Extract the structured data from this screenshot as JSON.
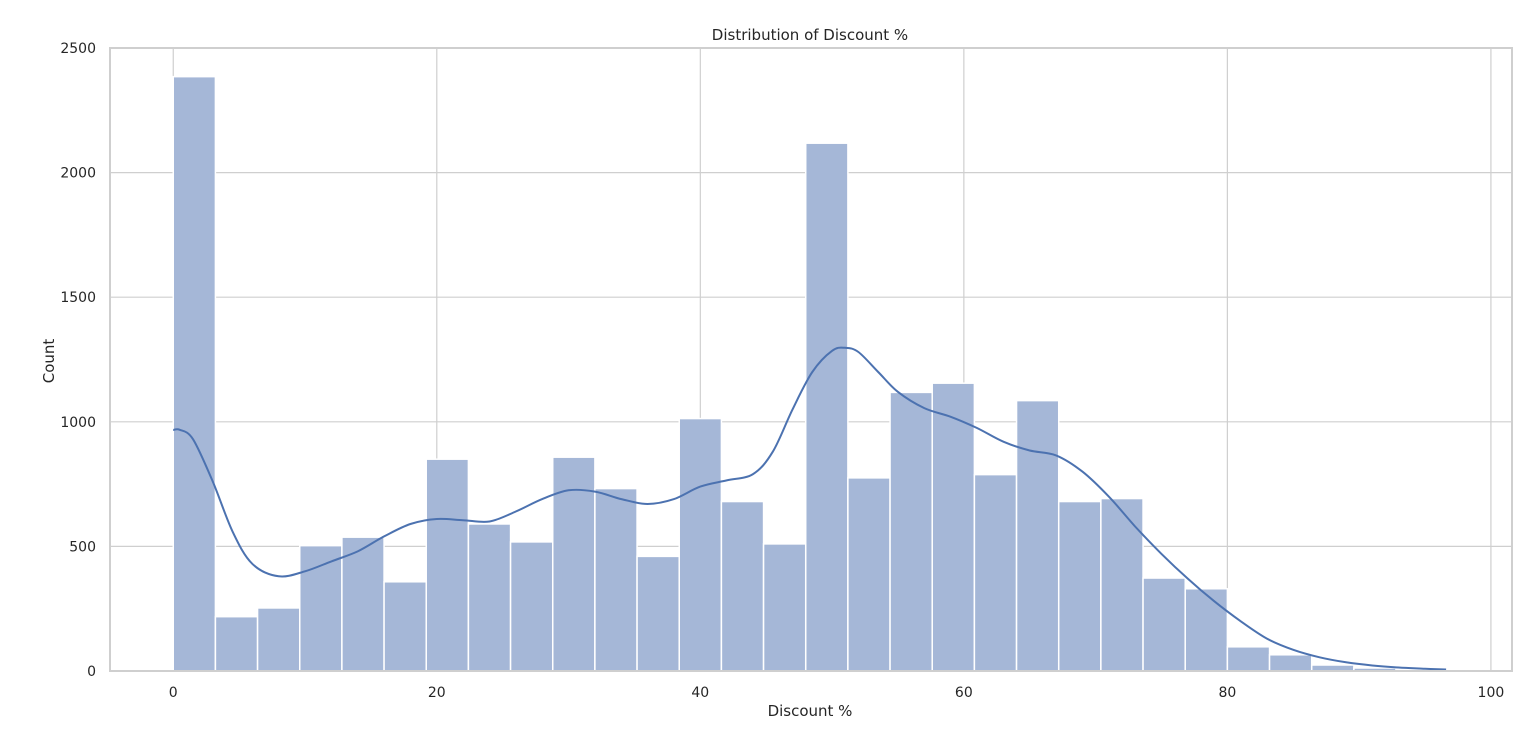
{
  "chart_data": {
    "type": "bar",
    "title": "Distribution of Discount %",
    "xlabel": "Discount %",
    "ylabel": "Count",
    "xlim": [
      -4.8,
      101.6
    ],
    "ylim": [
      0,
      2500
    ],
    "xticks": [
      0,
      20,
      40,
      60,
      80,
      100
    ],
    "yticks": [
      0,
      500,
      1000,
      1500,
      2000,
      2500
    ],
    "grid": true,
    "bin_start": 0,
    "bin_width": 3.2,
    "values": [
      2385,
      218,
      253,
      503,
      537,
      358,
      850,
      590,
      518,
      858,
      732,
      460,
      1013,
      680,
      510,
      2118,
      775,
      1118,
      1155,
      788,
      1085,
      680,
      692,
      373,
      330,
      97,
      65,
      24,
      12,
      5
    ],
    "kde": {
      "x": [
        0,
        0.5,
        1.5,
        3,
        4.5,
        6,
        8,
        10,
        12,
        14,
        16,
        18,
        20,
        22,
        24,
        26,
        28,
        30,
        32,
        34,
        36,
        38,
        40,
        42,
        44,
        45.5,
        47,
        48.5,
        50,
        51,
        52,
        53.5,
        55,
        57,
        59,
        61,
        63,
        65,
        67,
        69,
        71,
        73,
        75,
        77,
        79,
        81,
        83,
        85,
        87,
        89,
        91,
        93,
        95,
        96.6
      ],
      "y": [
        967,
        968,
        930,
        760,
        560,
        430,
        380,
        400,
        440,
        480,
        540,
        590,
        610,
        605,
        600,
        640,
        690,
        725,
        720,
        690,
        670,
        690,
        740,
        765,
        790,
        880,
        1050,
        1200,
        1285,
        1297,
        1280,
        1200,
        1120,
        1055,
        1020,
        975,
        920,
        885,
        865,
        800,
        700,
        580,
        470,
        370,
        280,
        200,
        130,
        85,
        55,
        35,
        22,
        14,
        9,
        6
      ]
    }
  }
}
